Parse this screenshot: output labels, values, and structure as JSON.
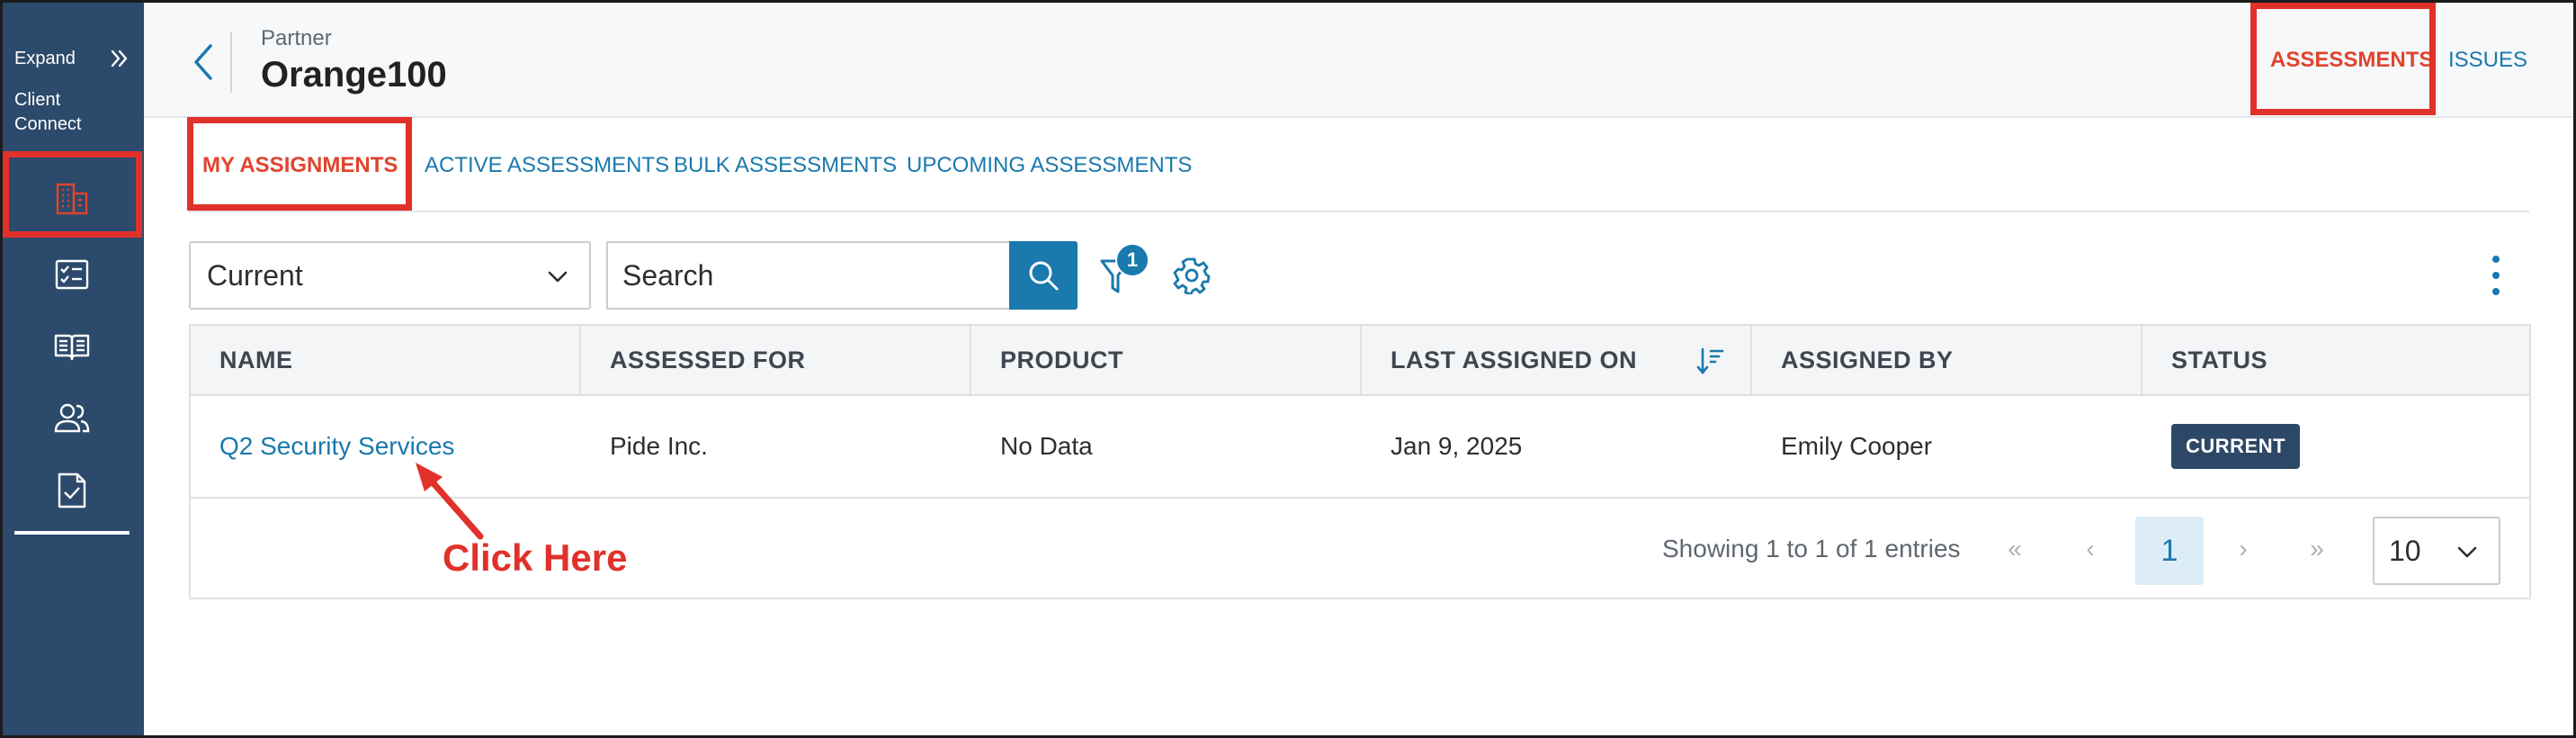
{
  "sidebar": {
    "expand_label": "Expand",
    "section_line1": "Client",
    "section_line2": "Connect",
    "items": [
      {
        "icon": "building-icon",
        "active": true
      },
      {
        "icon": "checklist-icon",
        "active": false
      },
      {
        "icon": "book-icon",
        "active": false
      },
      {
        "icon": "users-icon",
        "active": false
      },
      {
        "icon": "document-check-icon",
        "active": false
      }
    ]
  },
  "header": {
    "label": "Partner",
    "title": "Orange100",
    "tabs": [
      {
        "label": "ASSESSMENTS",
        "active": true
      },
      {
        "label": "ISSUES",
        "active": false
      }
    ]
  },
  "subtabs": [
    {
      "label": "MY ASSIGNMENTS",
      "active": true
    },
    {
      "label": "ACTIVE ASSESSMENTS",
      "active": false
    },
    {
      "label": "BULK ASSESSMENTS",
      "active": false
    },
    {
      "label": "UPCOMING ASSESSMENTS",
      "active": false
    }
  ],
  "toolbar": {
    "filter_select_value": "Current",
    "search_placeholder": "Search",
    "filter_count": "1"
  },
  "table": {
    "columns": [
      "NAME",
      "ASSESSED FOR",
      "PRODUCT",
      "LAST ASSIGNED ON",
      "ASSIGNED BY",
      "STATUS"
    ],
    "rows": [
      {
        "name": "Q2 Security Services",
        "assessed_for": "Pide Inc.",
        "product": "No Data",
        "last_assigned_on": "Jan 9, 2025",
        "assigned_by": "Emily Cooper",
        "status": "CURRENT"
      }
    ]
  },
  "pagination": {
    "summary": "Showing 1 to 1 of 1 entries",
    "first": "«",
    "prev": "‹",
    "current_page": "1",
    "next": "›",
    "last": "»",
    "page_size": "10"
  },
  "annotation": {
    "text": "Click Here"
  },
  "colors": {
    "sidebar_bg": "#2c4a6b",
    "accent": "#1a79ad",
    "active_tab": "#e0442e",
    "highlight_box": "#e0312b",
    "status_badge": "#2d4866"
  }
}
